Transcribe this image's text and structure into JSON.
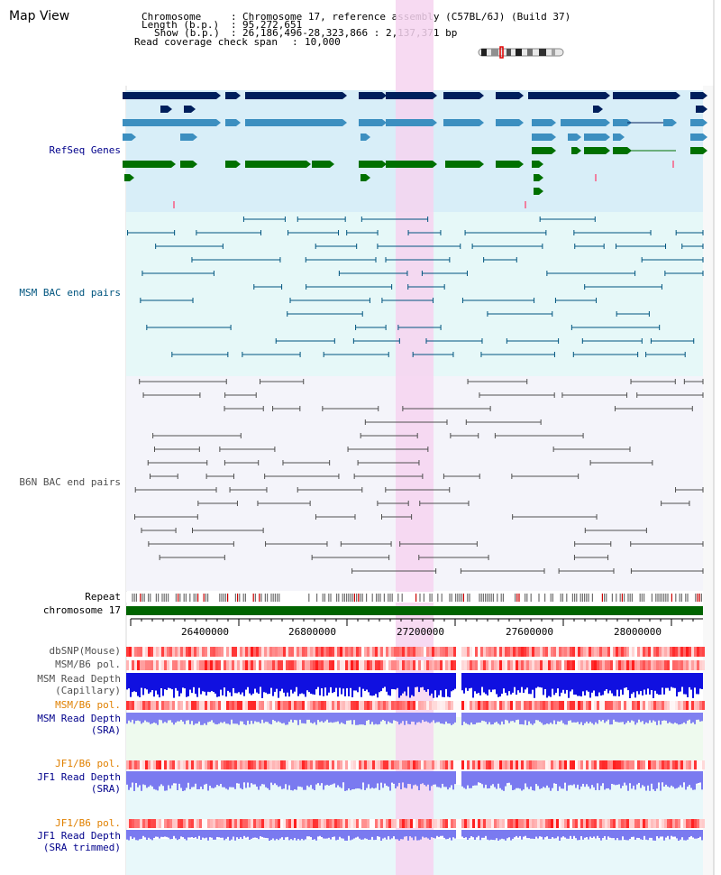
{
  "title": "Map View",
  "info": {
    "chromosome_label": "Chromosome",
    "chromosome_value": "Chromosome 17, reference assembly (C57BL/6J) (Build 37)",
    "length_label": "Length (b.p.)",
    "length_value": "95,272,651",
    "show_label": "Show (b.p.)",
    "show_value": "26,186,496-28,323,866 : 2,137,371 bp",
    "span_label": "Read coverage check span",
    "span_value": "10,000"
  },
  "tracks": {
    "refseq": "RefSeq Genes",
    "msm_bac": "MSM BAC end pairs",
    "b6n_bac": "B6N BAC end pairs",
    "repeat": "Repeat",
    "chromosome": "chromosome 17",
    "dbsnp": "dbSNP(Mouse)",
    "msm_b6_pol_1": "MSM/B6 pol.",
    "msm_depth_cap_1": "MSM Read Depth",
    "msm_depth_cap_2": "(Capillary)",
    "msm_b6_pol_2": "MSM/B6 pol.",
    "msm_depth_sra_1": "MSM Read Depth",
    "msm_depth_sra_2": "(SRA)",
    "jf1_b6_pol_1": "JF1/B6 pol.",
    "jf1_depth_1": "JF1 Read Depth",
    "jf1_depth_2": "(SRA)",
    "jf1_b6_pol_2": "JF1/B6 pol.",
    "jf1_trim_1": "JF1 Read Depth",
    "jf1_trim_2": "(SRA trimmed)"
  },
  "axis": {
    "ticks": [
      "26400000",
      "26800000",
      "27200000",
      "27600000",
      "28000000"
    ]
  },
  "colors": {
    "refseq_bg": "#d8eef8",
    "msm_bg": "#e6f8f8",
    "b6n_bg": "#f4f4fa",
    "highlight": "#f6d4f0",
    "navy": "#001f5c",
    "steel": "#3c8fc0",
    "green": "#007000",
    "teal": "#00557f",
    "grey": "#505050",
    "label_navy": "#00008b",
    "label_teal": "#00557f",
    "label_orange": "#e08000"
  }
}
